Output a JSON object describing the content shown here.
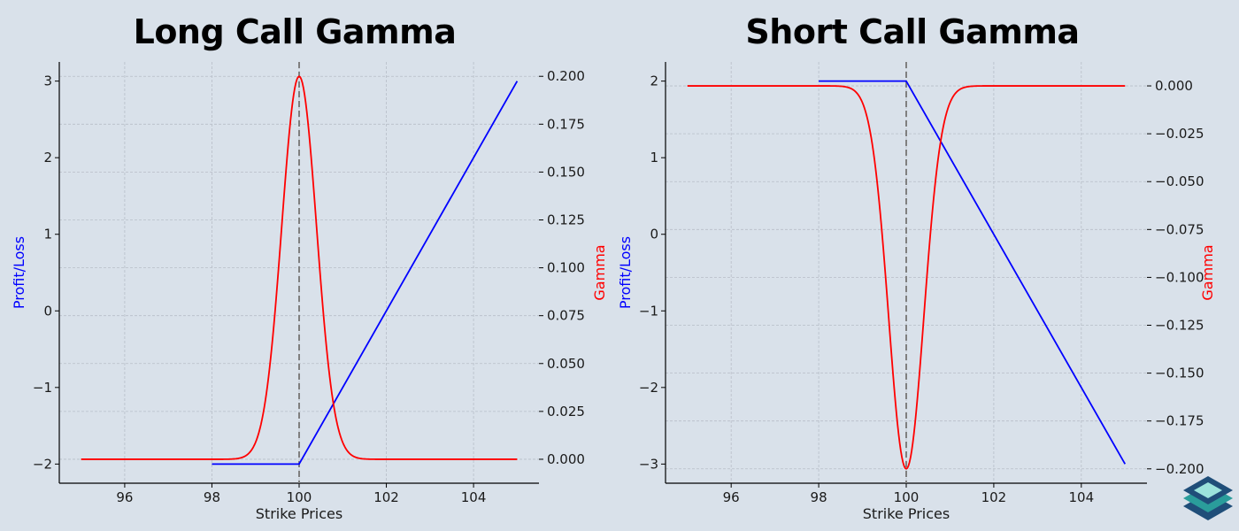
{
  "colors": {
    "background": "#d9e1ea",
    "profit_loss": "#0000ff",
    "gamma": "#ff0000",
    "strike_line": "#7f7f7f",
    "grid": "#b7bec8",
    "logo_dark": "#1f4e79",
    "logo_mid": "#2a9d9b",
    "logo_light": "#9be3dc"
  },
  "chart_data": [
    {
      "type": "line",
      "title": "Long Call Gamma",
      "xlabel": "Strike Prices",
      "ylabel": "Profit/Loss",
      "ylabel2": "Gamma",
      "xlim": [
        94.5,
        105.5
      ],
      "ylim": [
        -2.25,
        3.25
      ],
      "y2lim": [
        -0.0125,
        0.2075
      ],
      "xticks": [
        96,
        98,
        100,
        102,
        104
      ],
      "yticks": [
        -2,
        -1,
        0,
        1,
        2,
        3
      ],
      "y2ticks": [
        0.0,
        0.025,
        0.05,
        0.075,
        0.1,
        0.125,
        0.15,
        0.175,
        0.2
      ],
      "y2tick_labels": [
        "0.000",
        "0.025",
        "0.050",
        "0.075",
        "0.100",
        "0.125",
        "0.150",
        "0.175",
        "0.200"
      ],
      "strike": 100,
      "grid": true,
      "series": [
        {
          "axis": "left",
          "color": "#0000ff",
          "x": [
            98,
            100,
            105
          ],
          "y": [
            -2,
            -2,
            3
          ]
        },
        {
          "axis": "right",
          "color": "#ff0000",
          "kind": "gaussian",
          "x_range": [
            95,
            105
          ],
          "center": 100,
          "peak": 0.2,
          "sigma": 0.4
        }
      ]
    },
    {
      "type": "line",
      "title": "Short Call Gamma",
      "xlabel": "Strike Prices",
      "ylabel": "Profit/Loss",
      "ylabel2": "Gamma",
      "xlim": [
        94.5,
        105.5
      ],
      "ylim": [
        -3.25,
        2.25
      ],
      "y2lim": [
        -0.2075,
        0.0125
      ],
      "xticks": [
        96,
        98,
        100,
        102,
        104
      ],
      "yticks": [
        -3,
        -2,
        -1,
        0,
        1,
        2
      ],
      "y2ticks": [
        -0.2,
        -0.175,
        -0.15,
        -0.125,
        -0.1,
        -0.075,
        -0.05,
        -0.025,
        0.0
      ],
      "y2tick_labels": [
        "−0.200",
        "−0.175",
        "−0.150",
        "−0.125",
        "−0.100",
        "−0.075",
        "−0.050",
        "−0.025",
        "0.000"
      ],
      "strike": 100,
      "grid": true,
      "series": [
        {
          "axis": "left",
          "color": "#0000ff",
          "x": [
            98,
            100,
            105
          ],
          "y": [
            2,
            2,
            -3
          ]
        },
        {
          "axis": "right",
          "color": "#ff0000",
          "kind": "gaussian",
          "x_range": [
            95,
            105
          ],
          "center": 100,
          "peak": -0.2,
          "sigma": 0.4
        }
      ]
    }
  ]
}
